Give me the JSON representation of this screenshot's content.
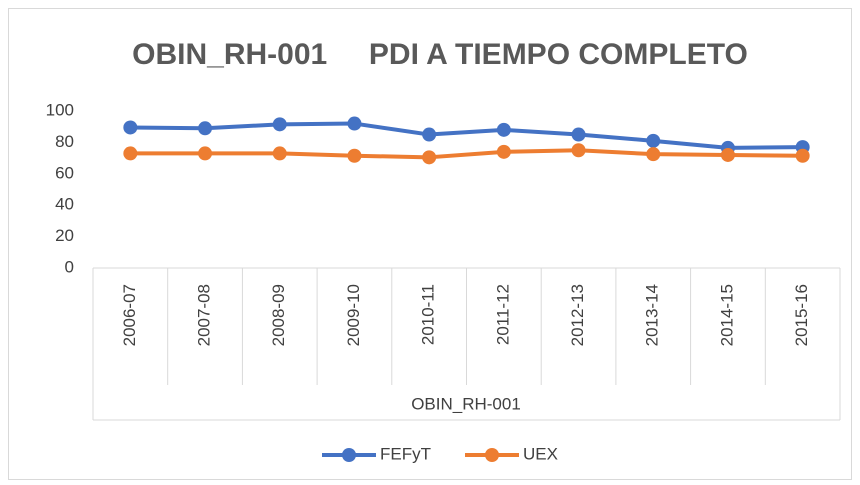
{
  "chart_data": {
    "type": "line",
    "title": "OBIN_RH-001     PDI A TIEMPO COMPLETO",
    "x_label": "OBIN_RH-001",
    "categories": [
      "2006-07",
      "2007-08",
      "2008-09",
      "2009-10",
      "2010-11",
      "2011-12",
      "2012-13",
      "2013-14",
      "2014-15",
      "2015-16"
    ],
    "series": [
      {
        "name": "FEFyT",
        "color": "#4472c4",
        "values": [
          89.5,
          89,
          91.5,
          92,
          85,
          88,
          85,
          81,
          76.5,
          77
        ]
      },
      {
        "name": "UEX",
        "color": "#ed7d31",
        "values": [
          73,
          73,
          73,
          71.5,
          70.5,
          74,
          75,
          72.5,
          72,
          71.5
        ]
      }
    ],
    "ylim": [
      0,
      100
    ],
    "yticks": [
      0,
      20,
      40,
      60,
      80,
      100
    ],
    "grid": false,
    "legend": "bottom"
  }
}
